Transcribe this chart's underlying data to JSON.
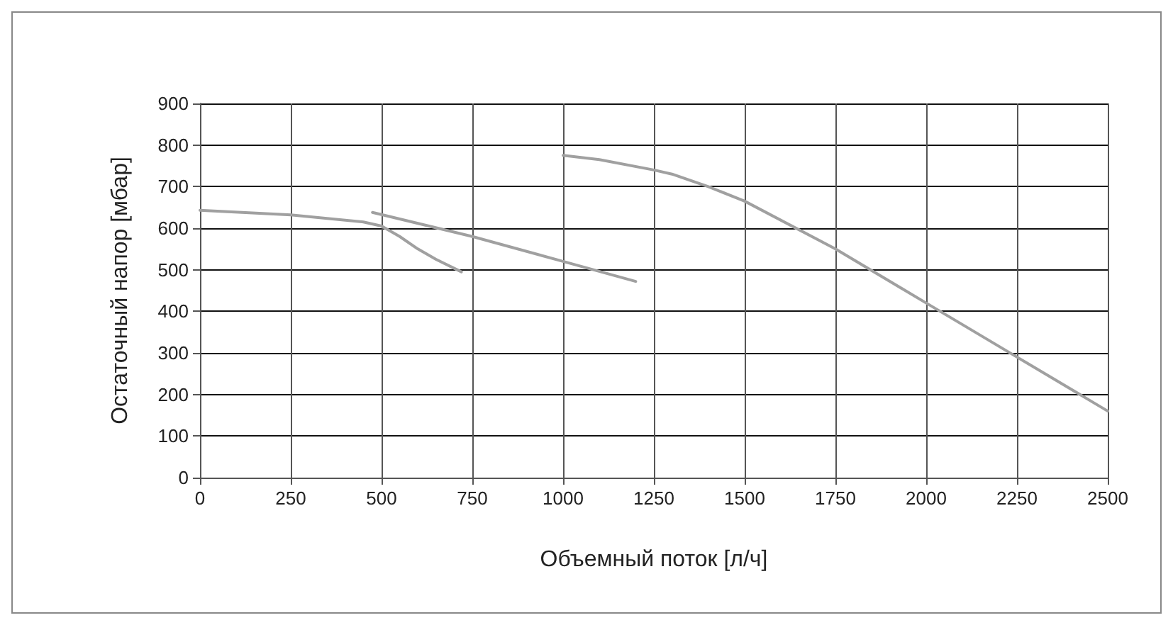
{
  "chart_data": {
    "type": "line",
    "xlabel": "Объемный поток [л/ч]",
    "ylabel": "Остаточный напор [мбар]",
    "series": [
      {
        "color": "#a0a0a0",
        "x": [
          0,
          250,
          450,
          500,
          550,
          600,
          650,
          720
        ],
        "values": [
          643,
          632,
          615,
          605,
          580,
          550,
          525,
          495
        ]
      },
      {
        "color": "#a0a0a0",
        "x": [
          475,
          750,
          1000,
          1200
        ],
        "values": [
          638,
          580,
          520,
          472
        ]
      },
      {
        "color": "#a0a0a0",
        "x": [
          1000,
          1100,
          1250,
          1300,
          1400,
          1500,
          1750,
          2000,
          2250,
          2500
        ],
        "values": [
          775,
          765,
          740,
          730,
          700,
          665,
          550,
          420,
          290,
          160
        ]
      }
    ],
    "xlim": [
      0,
      2500
    ],
    "xticks": [
      0,
      250,
      500,
      750,
      1000,
      1250,
      1500,
      1750,
      2000,
      2250,
      2500
    ],
    "ylim": [
      0,
      900
    ],
    "yticks": [
      0,
      100,
      200,
      300,
      400,
      500,
      600,
      700,
      800,
      900
    ],
    "grid": true,
    "marker": "none",
    "line_style": "solid"
  }
}
